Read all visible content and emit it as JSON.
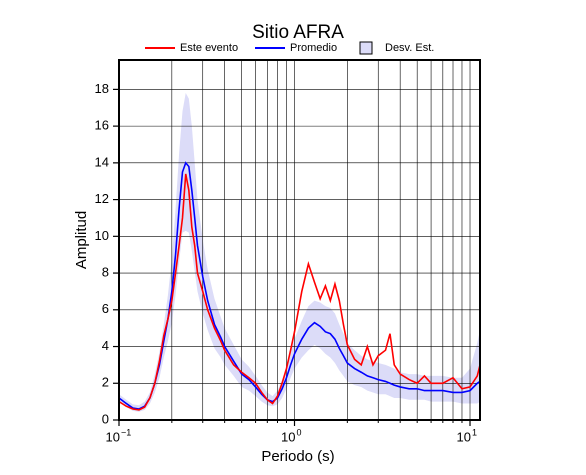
{
  "chart_data": {
    "type": "line",
    "title": "Sitio AFRA",
    "x_label": "Periodo (s)",
    "y_label": "Amplitud",
    "log_x": true,
    "grid": true,
    "xlim": [
      0.1,
      11.4
    ],
    "ylim": [
      0,
      19.6
    ],
    "xticks": [
      {
        "value": 0.1,
        "label": "10",
        "exponent": "−1"
      },
      {
        "value": 1,
        "label": "10",
        "exponent": "0"
      },
      {
        "value": 10,
        "label": "10",
        "exponent": "1"
      }
    ],
    "xminorticks": [
      0.2,
      0.3,
      0.4,
      0.5,
      0.6,
      0.7,
      0.8,
      0.9,
      2,
      3,
      4,
      5,
      6,
      7,
      8,
      9
    ],
    "yticks": [
      0,
      2,
      4,
      6,
      8,
      10,
      12,
      14,
      16,
      18
    ],
    "x": [
      0.1,
      0.11,
      0.12,
      0.13,
      0.14,
      0.15,
      0.16,
      0.17,
      0.18,
      0.19,
      0.2,
      0.21,
      0.22,
      0.23,
      0.24,
      0.25,
      0.26,
      0.27,
      0.28,
      0.3,
      0.32,
      0.35,
      0.38,
      0.4,
      0.45,
      0.5,
      0.55,
      0.6,
      0.65,
      0.7,
      0.75,
      0.8,
      0.85,
      0.9,
      0.95,
      1.0,
      1.1,
      1.2,
      1.3,
      1.4,
      1.5,
      1.6,
      1.7,
      1.8,
      1.9,
      2.0,
      2.2,
      2.4,
      2.6,
      2.8,
      3.0,
      3.3,
      3.5,
      3.7,
      4.0,
      4.5,
      5,
      5.5,
      6,
      7,
      8,
      9,
      10,
      11,
      11.4
    ],
    "band": {
      "name": "Desv. Est.",
      "color": "#dcdcf8",
      "upper": [
        1.4,
        1.1,
        0.85,
        0.8,
        1.0,
        1.5,
        2.5,
        3.7,
        5.2,
        6.8,
        8.8,
        11.5,
        14.5,
        16.8,
        17.8,
        17.5,
        16,
        14,
        12,
        9.8,
        8.2,
        6.6,
        5.6,
        5,
        4.1,
        3.3,
        2.9,
        2.4,
        1.9,
        1.5,
        1.3,
        1.6,
        2.2,
        2.9,
        3.7,
        4.4,
        5.4,
        6.2,
        6.5,
        6.4,
        6.2,
        6.1,
        5.8,
        5.2,
        4.7,
        4.2,
        3.8,
        3.5,
        3.3,
        3.2,
        3.1,
        3.0,
        2.9,
        2.8,
        2.6,
        2.5,
        2.5,
        2.4,
        2.4,
        2.4,
        2.3,
        2.3,
        2.8,
        4.2,
        4.9
      ],
      "lower": [
        1.0,
        0.7,
        0.5,
        0.45,
        0.55,
        0.9,
        1.5,
        2.3,
        3.4,
        4.3,
        5.3,
        6.8,
        8.6,
        10.2,
        10.3,
        10.2,
        9.2,
        8.1,
        7.0,
        5.8,
        4.9,
        3.9,
        3.4,
        3.0,
        2.4,
        1.8,
        1.6,
        1.3,
        1.0,
        0.8,
        0.75,
        0.85,
        1.2,
        1.7,
        2.3,
        2.8,
        3.4,
        3.8,
        4.1,
        3.9,
        3.6,
        3.4,
        3.1,
        2.7,
        2.4,
        2.1,
        1.9,
        1.8,
        1.6,
        1.5,
        1.4,
        1.4,
        1.3,
        1.2,
        1.2,
        1.1,
        1.1,
        1.1,
        1.0,
        1.0,
        1.0,
        0.9,
        0.9,
        0.9,
        1.0
      ]
    },
    "series": [
      {
        "name": "Este evento",
        "color": "#ff0000",
        "values": [
          1.0,
          0.75,
          0.6,
          0.55,
          0.7,
          1.2,
          2.0,
          3.2,
          4.6,
          5.5,
          6.5,
          8,
          9.5,
          11,
          13.4,
          12.5,
          10.5,
          9.5,
          8,
          7,
          6,
          5,
          4.3,
          3.8,
          3.0,
          2.6,
          2.3,
          2.0,
          1.5,
          1.1,
          0.9,
          1.3,
          2.0,
          2.8,
          3.8,
          4.8,
          7.0,
          8.5,
          7.5,
          6.6,
          7.3,
          6.5,
          7.4,
          6.5,
          5.2,
          4.1,
          3.3,
          3.0,
          4.0,
          3.0,
          3.5,
          3.8,
          4.7,
          3.0,
          2.5,
          2.2,
          2.0,
          2.4,
          2.0,
          2.0,
          2.3,
          1.7,
          1.8,
          2.4,
          3.0
        ]
      },
      {
        "name": "Promedio",
        "color": "#0000ff",
        "values": [
          1.2,
          0.9,
          0.65,
          0.6,
          0.75,
          1.2,
          2.0,
          3.0,
          4.3,
          5.5,
          7,
          9,
          11.5,
          13.5,
          14,
          13.8,
          12.5,
          11,
          9.5,
          7.8,
          6.5,
          5.2,
          4.5,
          4,
          3.2,
          2.5,
          2.2,
          1.8,
          1.4,
          1.1,
          1.0,
          1.2,
          1.7,
          2.3,
          3,
          3.6,
          4.4,
          5.0,
          5.3,
          5.1,
          4.8,
          4.7,
          4.4,
          3.9,
          3.5,
          3.1,
          2.8,
          2.6,
          2.4,
          2.3,
          2.2,
          2.1,
          2.0,
          1.9,
          1.8,
          1.7,
          1.7,
          1.6,
          1.6,
          1.6,
          1.5,
          1.5,
          1.6,
          2.0,
          2.1
        ]
      }
    ]
  }
}
